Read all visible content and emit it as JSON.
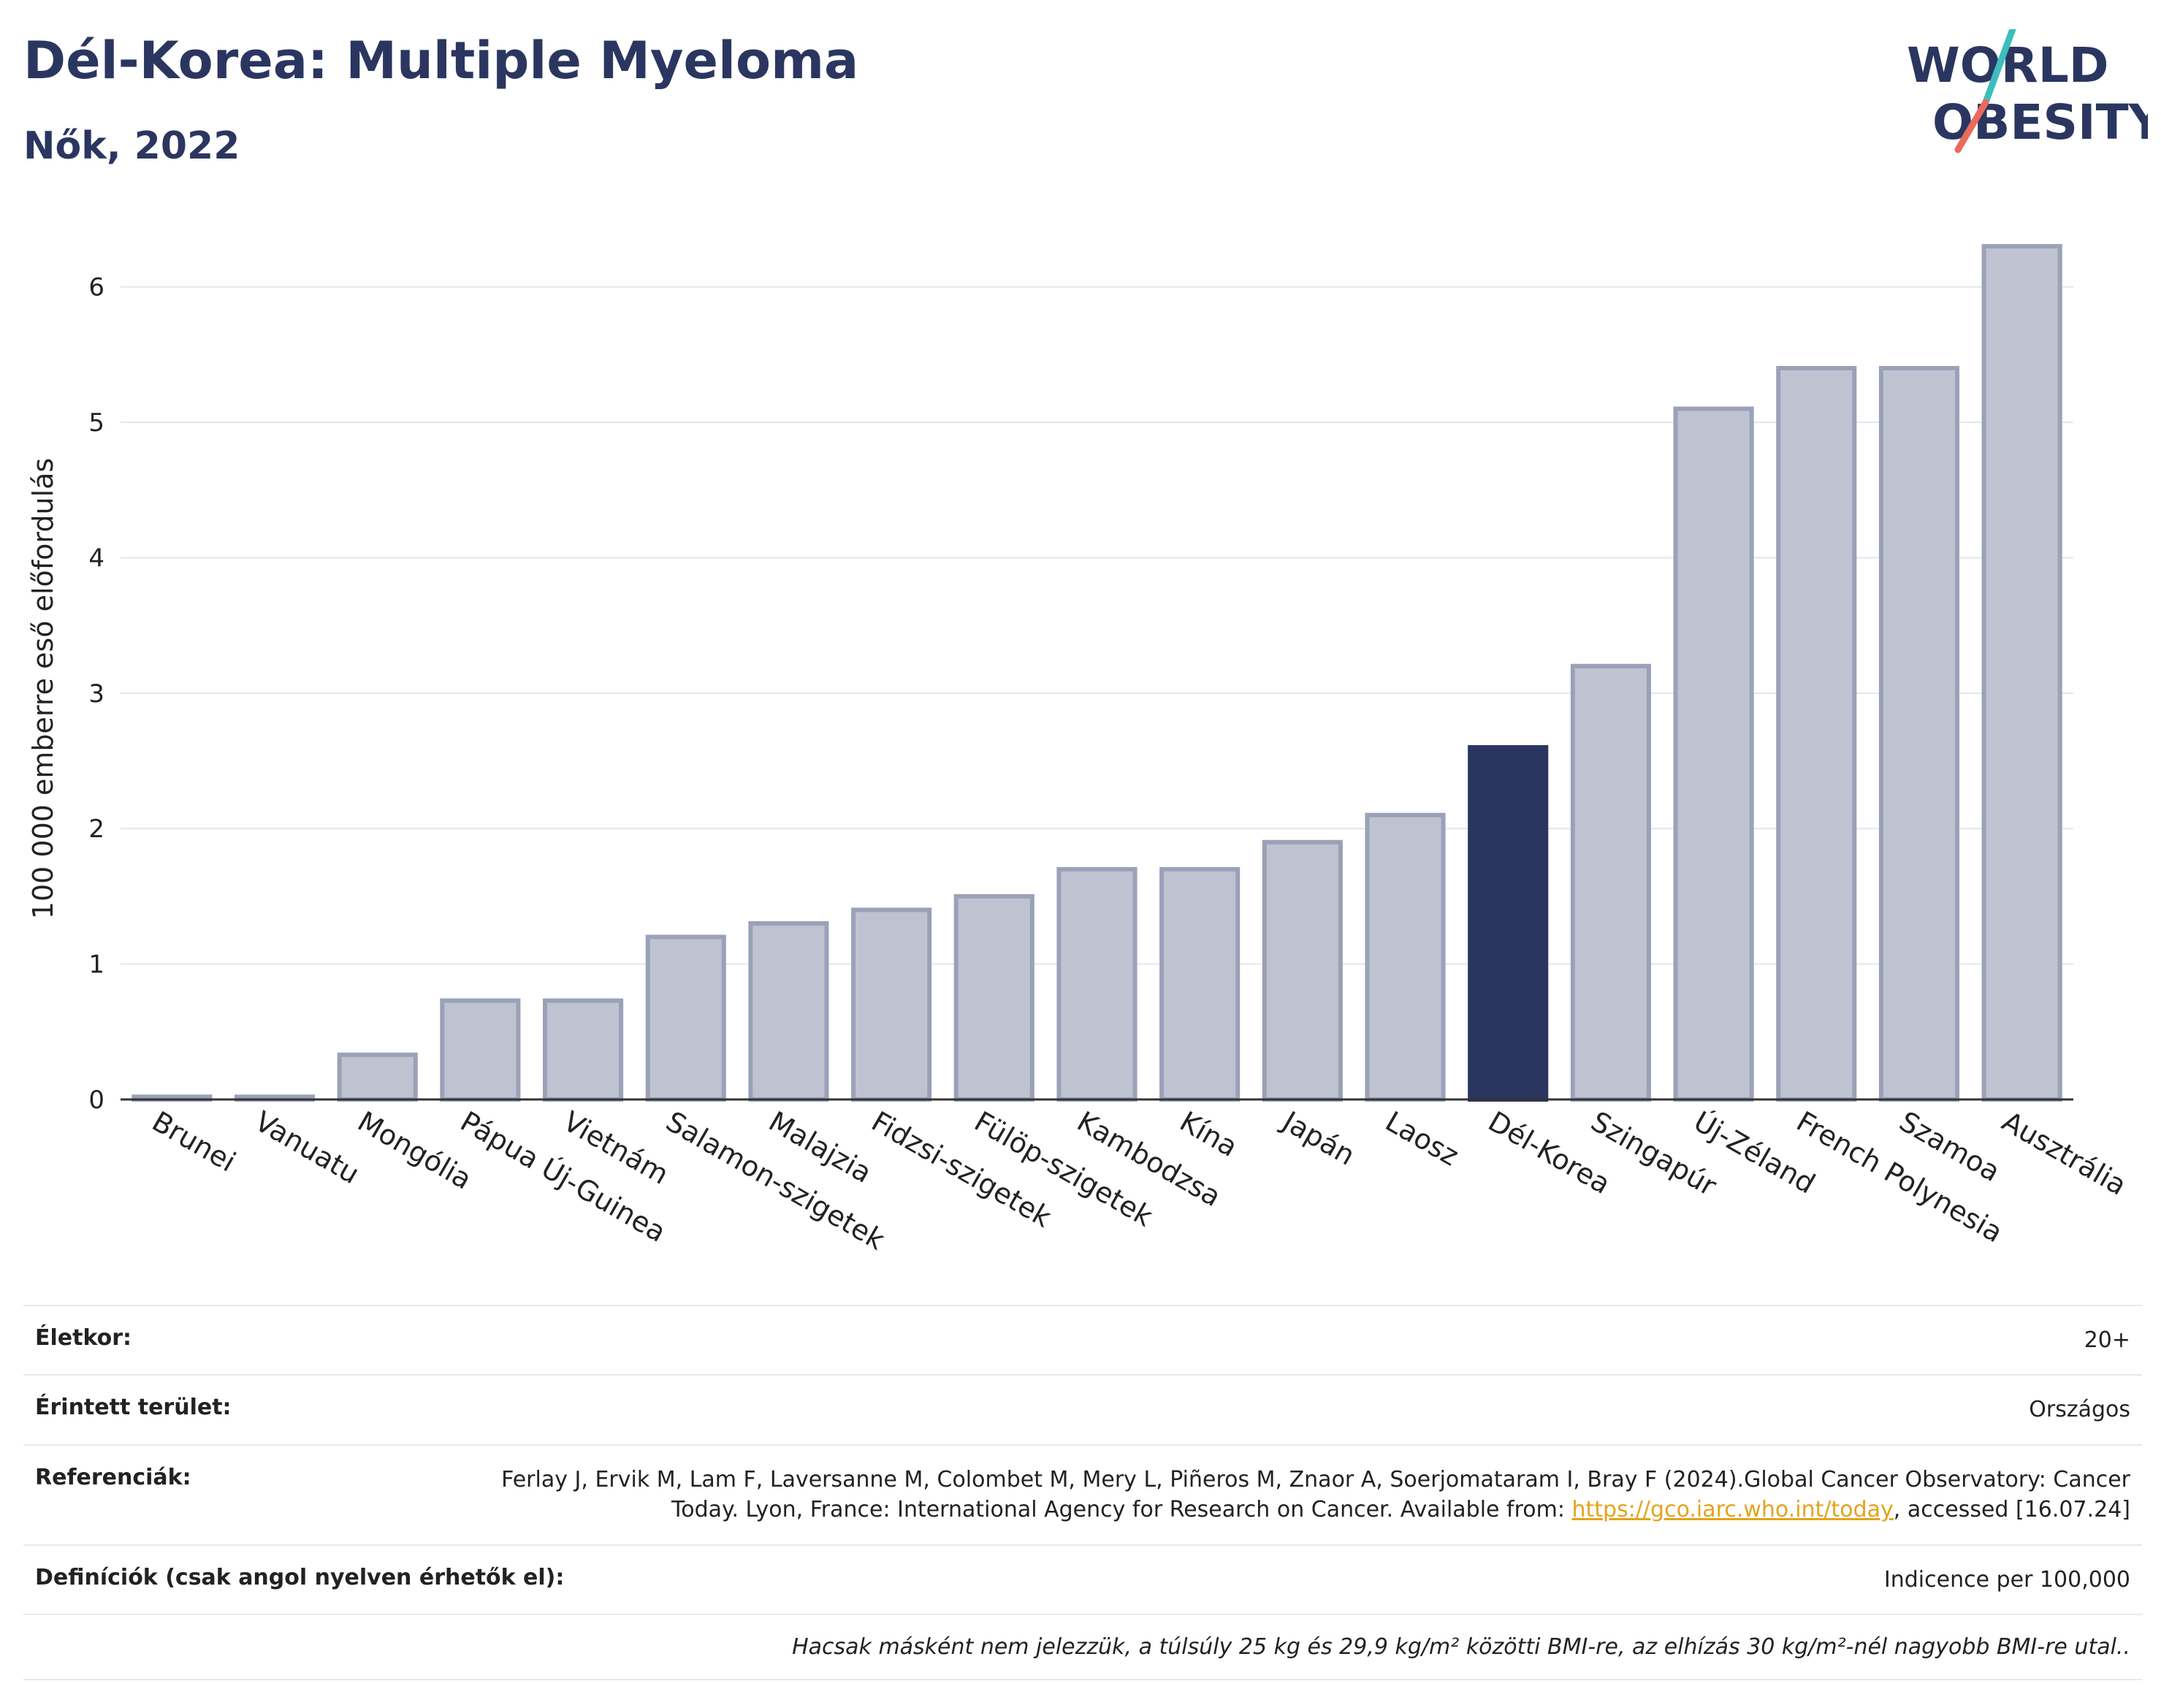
{
  "header": {
    "title": "Dél-Korea: Multiple Myeloma",
    "subtitle": "Nők, 2022"
  },
  "logo": {
    "line1": "WORLD",
    "line2": "OBESITY",
    "colors": {
      "text": "#2b3660",
      "slash_teal": "#3dbdbd",
      "slash_coral": "#e96b5b"
    }
  },
  "chart_data": {
    "type": "bar",
    "ylabel": "100 000 emberre eső előfordulás",
    "ylim": [
      0,
      6.5
    ],
    "yticks": [
      0,
      1,
      2,
      3,
      4,
      5,
      6
    ],
    "grid": true,
    "highlight": "Dél-Korea",
    "colors": {
      "bar": "#2b3660",
      "bar_faded": "#bfc3d1",
      "bar_outline": "#9aa1b8",
      "highlight": "#2b3660",
      "grid": "#e3e6ee"
    },
    "categories": [
      "Brunei",
      "Vanuatu",
      "Mongólia",
      "Pápua Új-Guinea",
      "Vietnám",
      "Salamon-szigetek",
      "Malajzia",
      "Fidzsi-szigetek",
      "Fülöp-szigetek",
      "Kambodzsa",
      "Kína",
      "Japán",
      "Laosz",
      "Dél-Korea",
      "Szingapúr",
      "Új-Zéland",
      "French Polynesia",
      "Szamoa",
      "Ausztrália"
    ],
    "values": [
      0.02,
      0.02,
      0.33,
      0.73,
      0.73,
      1.2,
      1.3,
      1.4,
      1.5,
      1.7,
      1.7,
      1.9,
      2.1,
      2.6,
      3.2,
      5.1,
      5.4,
      5.4,
      6.3
    ]
  },
  "info": {
    "rows": [
      {
        "label": "Életkor:",
        "value": "20+"
      },
      {
        "label": "Érintett terület:",
        "value": "Országos"
      },
      {
        "label": "Referenciák:",
        "value_pre": "Ferlay J, Ervik M, Lam F, Laversanne M, Colombet M, Mery L, Piñeros M, Znaor A, Soerjomataram I, Bray F (2024).Global Cancer Observatory: Cancer Today. Lyon, France: International Agency for Research on Cancer. Available from: ",
        "link": "https://gco.iarc.who.int/today",
        "value_post": ", accessed [16.07.24]"
      },
      {
        "label": "Definíciók (csak angol nyelven érhetők el):",
        "value": "Indicence per 100,000"
      }
    ],
    "note": "Hacsak másként nem jelezzük, a túlsúly 25 kg és 29,9 kg/m² közötti BMI-re, az elhízás 30 kg/m²-nél nagyobb BMI-re utal.."
  }
}
